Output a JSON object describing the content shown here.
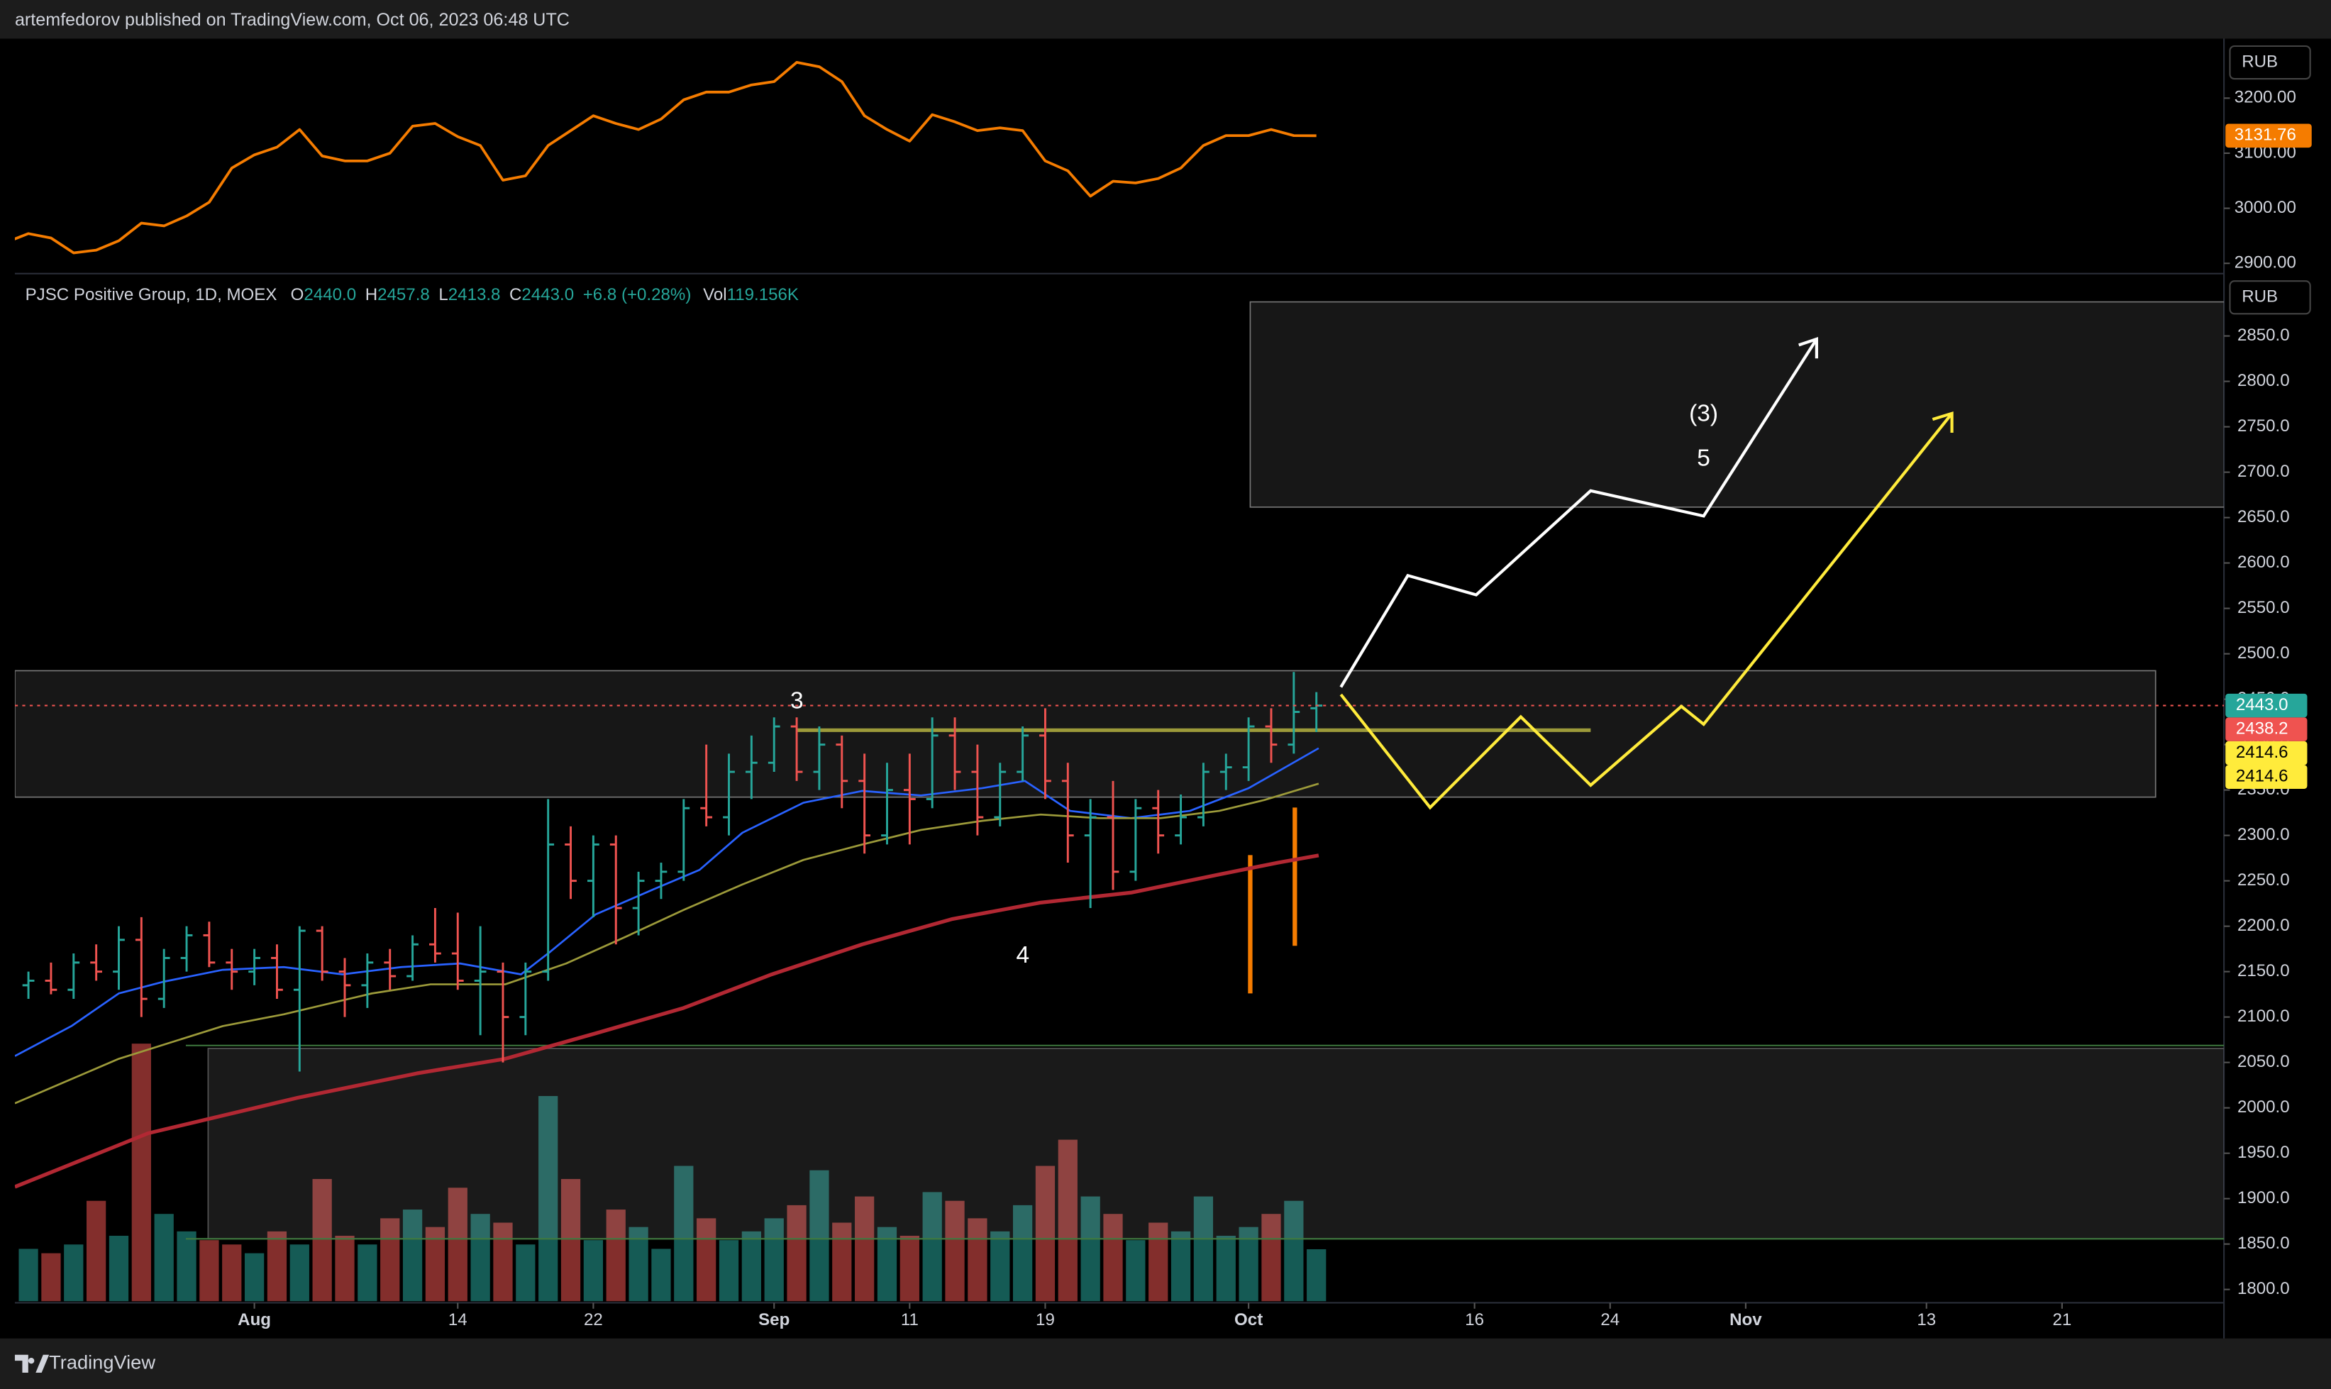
{
  "header": {
    "publisher": "artemfedorov published on TradingView.com, Oct 06, 2023 06:48 UTC"
  },
  "footer": {
    "brand": "TradingView"
  },
  "chart_data": [
    {
      "type": "line",
      "currency": "RUB",
      "ylim": [
        2884,
        3308
      ],
      "yticks": [
        {
          "value": 2900,
          "label": "2900.00"
        },
        {
          "value": 3000,
          "label": "3000.00"
        },
        {
          "value": 3100,
          "label": "3100.00"
        },
        {
          "value": 3200,
          "label": "3200.00"
        }
      ],
      "series": [
        {
          "color": "#f57c00",
          "x": [
            -1,
            0,
            1,
            2,
            3,
            4,
            5,
            6,
            7,
            8,
            9,
            10,
            11,
            12,
            13,
            14,
            15,
            16,
            17,
            18,
            19,
            20,
            21,
            22,
            23,
            24,
            25,
            26,
            27,
            28,
            29,
            30,
            31,
            32,
            33,
            34,
            35,
            36,
            37,
            38,
            39,
            40,
            41,
            42,
            43,
            44,
            45,
            46,
            47,
            48,
            49,
            50,
            51,
            52,
            53,
            54,
            55,
            56,
            57
          ],
          "values": [
            2938,
            2954,
            2946,
            2919,
            2924,
            2941,
            2973,
            2968,
            2986,
            3011,
            3073,
            3097,
            3111,
            3143,
            3095,
            3086,
            3086,
            3100,
            3149,
            3154,
            3130,
            3114,
            3051,
            3059,
            3114,
            3141,
            3168,
            3154,
            3143,
            3162,
            3197,
            3211,
            3211,
            3224,
            3230,
            3265,
            3257,
            3230,
            3168,
            3143,
            3122,
            3170,
            3157,
            3141,
            3146,
            3141,
            3086,
            3068,
            3022,
            3049,
            3046,
            3054,
            3073,
            3114,
            3132,
            3132,
            3143,
            3132,
            3131.76
          ]
        }
      ]
    },
    {
      "type": "ohlc",
      "title": "PJSC Positive Group, 1D, MOEX",
      "currency": "RUB",
      "legend": {
        "items": [
          {
            "key": "O",
            "value": "2440.0"
          },
          {
            "key": "H",
            "value": "2457.8"
          },
          {
            "key": "L",
            "value": "2413.8"
          },
          {
            "key": "C",
            "value": "2443.0"
          }
        ],
        "change": "+6.8 (+0.28%)",
        "volume_key": "Vol",
        "volume_value": "119.156K"
      },
      "up_color": "#26a69a",
      "down_color": "#ef5350",
      "xlim": [
        -0.6,
        97.1
      ],
      "xticks": [
        {
          "value": 10,
          "label": "Aug"
        },
        {
          "value": 19,
          "label": "14"
        },
        {
          "value": 25,
          "label": "22"
        },
        {
          "value": 33,
          "label": "Sep"
        },
        {
          "value": 39,
          "label": "11"
        },
        {
          "value": 45,
          "label": "19"
        },
        {
          "value": 54,
          "label": "Oct"
        },
        {
          "value": 64,
          "label": "16"
        },
        {
          "value": 70,
          "label": "24"
        },
        {
          "value": 76,
          "label": "Nov"
        },
        {
          "value": 84,
          "label": "13"
        },
        {
          "value": 90,
          "label": "21"
        }
      ],
      "ylim": [
        1787,
        2917
      ],
      "yticks": [
        {
          "value": 1800,
          "label": "1800.0"
        },
        {
          "value": 1850,
          "label": "1850.0"
        },
        {
          "value": 1900,
          "label": "1900.0"
        },
        {
          "value": 1950,
          "label": "1950.0"
        },
        {
          "value": 2000,
          "label": "2000.0"
        },
        {
          "value": 2050,
          "label": "2050.0"
        },
        {
          "value": 2100,
          "label": "2100.0"
        },
        {
          "value": 2150,
          "label": "2150.0"
        },
        {
          "value": 2200,
          "label": "2200.0"
        },
        {
          "value": 2250,
          "label": "2250.0"
        },
        {
          "value": 2300,
          "label": "2300.0"
        },
        {
          "value": 2350,
          "label": "2350.0"
        },
        {
          "value": 2400,
          "label": "2400.0"
        },
        {
          "value": 2450,
          "label": "2450.0"
        },
        {
          "value": 2500,
          "label": "2500.0"
        },
        {
          "value": 2550,
          "label": "2550.0"
        },
        {
          "value": 2600,
          "label": "2600.0"
        },
        {
          "value": 2650,
          "label": "2650.0"
        },
        {
          "value": 2700,
          "label": "2700.0"
        },
        {
          "value": 2750,
          "label": "2750.0"
        },
        {
          "value": 2800,
          "label": "2800.0"
        },
        {
          "value": 2850,
          "label": "2850.0"
        }
      ],
      "vol_ylim": [
        0,
        2350
      ],
      "x": [
        0,
        1,
        2,
        3,
        4,
        5,
        6,
        7,
        8,
        9,
        10,
        11,
        12,
        13,
        14,
        15,
        16,
        17,
        18,
        19,
        20,
        21,
        22,
        23,
        24,
        25,
        26,
        27,
        28,
        29,
        30,
        31,
        32,
        33,
        34,
        35,
        36,
        37,
        38,
        39,
        40,
        41,
        42,
        43,
        44,
        45,
        46,
        47,
        48,
        49,
        50,
        51,
        52,
        53,
        54,
        55,
        56,
        57
      ],
      "open": [
        2135,
        2140,
        2130,
        2160,
        2150,
        2185,
        2120,
        2165,
        2190,
        2160,
        2150,
        2165,
        2130,
        2195,
        2150,
        2135,
        2160,
        2145,
        2180,
        2170,
        2140,
        2150,
        2100,
        2150,
        2290,
        2250,
        2290,
        2220,
        2250,
        2260,
        2330,
        2320,
        2370,
        2380,
        2420,
        2370,
        2400,
        2360,
        2300,
        2350,
        2340,
        2410,
        2370,
        2320,
        2370,
        2410,
        2360,
        2300,
        2320,
        2260,
        2330,
        2300,
        2320,
        2370,
        2375,
        2420,
        2400,
        2440
      ],
      "high": [
        2150,
        2160,
        2170,
        2180,
        2200,
        2210,
        2175,
        2200,
        2205,
        2175,
        2175,
        2180,
        2200,
        2200,
        2165,
        2170,
        2175,
        2190,
        2220,
        2215,
        2200,
        2160,
        2160,
        2340,
        2310,
        2300,
        2300,
        2260,
        2270,
        2340,
        2400,
        2390,
        2410,
        2430,
        2430,
        2420,
        2410,
        2390,
        2380,
        2390,
        2430,
        2430,
        2400,
        2380,
        2420,
        2440,
        2380,
        2340,
        2360,
        2340,
        2350,
        2345,
        2380,
        2390,
        2430,
        2440,
        2480,
        2457.8
      ],
      "low": [
        2120,
        2125,
        2120,
        2140,
        2130,
        2100,
        2110,
        2150,
        2155,
        2130,
        2135,
        2120,
        2040,
        2140,
        2100,
        2110,
        2130,
        2140,
        2160,
        2130,
        2080,
        2050,
        2080,
        2140,
        2230,
        2210,
        2180,
        2190,
        2230,
        2250,
        2310,
        2300,
        2340,
        2370,
        2360,
        2350,
        2330,
        2280,
        2290,
        2290,
        2330,
        2350,
        2300,
        2310,
        2360,
        2340,
        2270,
        2220,
        2240,
        2250,
        2280,
        2290,
        2310,
        2350,
        2360,
        2380,
        2390,
        2413.8
      ],
      "close": [
        2140,
        2130,
        2160,
        2150,
        2185,
        2120,
        2165,
        2190,
        2160,
        2150,
        2165,
        2130,
        2195,
        2150,
        2135,
        2160,
        2145,
        2180,
        2170,
        2140,
        2150,
        2100,
        2150,
        2290,
        2250,
        2290,
        2220,
        2250,
        2260,
        2330,
        2320,
        2370,
        2380,
        2420,
        2370,
        2400,
        2360,
        2300,
        2350,
        2340,
        2410,
        2370,
        2320,
        2370,
        2410,
        2360,
        2300,
        2320,
        2260,
        2330,
        2300,
        2320,
        2370,
        2375,
        2420,
        2400,
        2436,
        2443
      ],
      "volume": [
        120,
        110,
        130,
        230,
        150,
        590,
        200,
        160,
        140,
        130,
        110,
        160,
        130,
        280,
        150,
        130,
        190,
        210,
        170,
        260,
        200,
        180,
        130,
        470,
        280,
        140,
        210,
        170,
        120,
        310,
        190,
        140,
        160,
        190,
        220,
        300,
        180,
        240,
        170,
        150,
        250,
        230,
        190,
        160,
        220,
        310,
        370,
        240,
        200,
        140,
        180,
        160,
        240,
        150,
        170,
        200,
        230,
        119.156
      ],
      "series": [
        {
          "color": "#2962ff",
          "x": [
            -0.6,
            1.9,
            4.0,
            6.0,
            8.6,
            11.3,
            13.9,
            16.5,
            19.1,
            21.8,
            23.1,
            25.1,
            27.7,
            29.7,
            31.6,
            34.3,
            36.9,
            39.5,
            42.2,
            44.1,
            46.1,
            48.8,
            51.4,
            54.0,
            57.1
          ],
          "values": [
            2057,
            2090,
            2126,
            2139,
            2152,
            2155,
            2147,
            2155,
            2159,
            2147,
            2172,
            2213,
            2241,
            2262,
            2303,
            2336,
            2349,
            2344,
            2352,
            2360,
            2327,
            2319,
            2327,
            2352,
            2396
          ]
        },
        {
          "color": "#9c9a3a",
          "x": [
            -0.6,
            4.0,
            8.6,
            11.3,
            15.2,
            17.8,
            21.1,
            23.8,
            26.4,
            29.0,
            31.6,
            34.3,
            36.9,
            39.5,
            42.2,
            44.8,
            47.4,
            50.1,
            52.7,
            54.7,
            57.1
          ],
          "values": [
            2005,
            2054,
            2090,
            2103,
            2126,
            2136,
            2136,
            2159,
            2188,
            2218,
            2246,
            2273,
            2290,
            2306,
            2316,
            2323,
            2319,
            2319,
            2327,
            2339,
            2357
          ]
        },
        {
          "color": "#b22833",
          "x": [
            -0.6,
            5.3,
            11.9,
            17.2,
            21.1,
            25.1,
            29.0,
            32.9,
            36.9,
            40.9,
            44.8,
            48.8,
            52.7,
            55.3,
            57.1
          ],
          "values": [
            1913,
            1972,
            2011,
            2038,
            2054,
            2082,
            2110,
            2147,
            2180,
            2208,
            2226,
            2237,
            2257,
            2270,
            2278
          ]
        }
      ],
      "price_labels": [
        {
          "value": 2443.0,
          "label": "2443.0",
          "color": "#26a69a",
          "text_color": "#ffffff"
        },
        {
          "value": 2438.2,
          "label": "2438.2",
          "color": "#ef5350",
          "text_color": "#ffffff"
        },
        {
          "value": 2414.6,
          "label": "2414.6",
          "color": "#ffeb3b",
          "text_color": "#000000"
        },
        {
          "value": 2414.6,
          "label": "2414.6",
          "color": "#ffeb3b",
          "text_color": "#000000"
        }
      ],
      "annotations": [
        "3",
        "4",
        "(3)",
        "5"
      ]
    }
  ]
}
